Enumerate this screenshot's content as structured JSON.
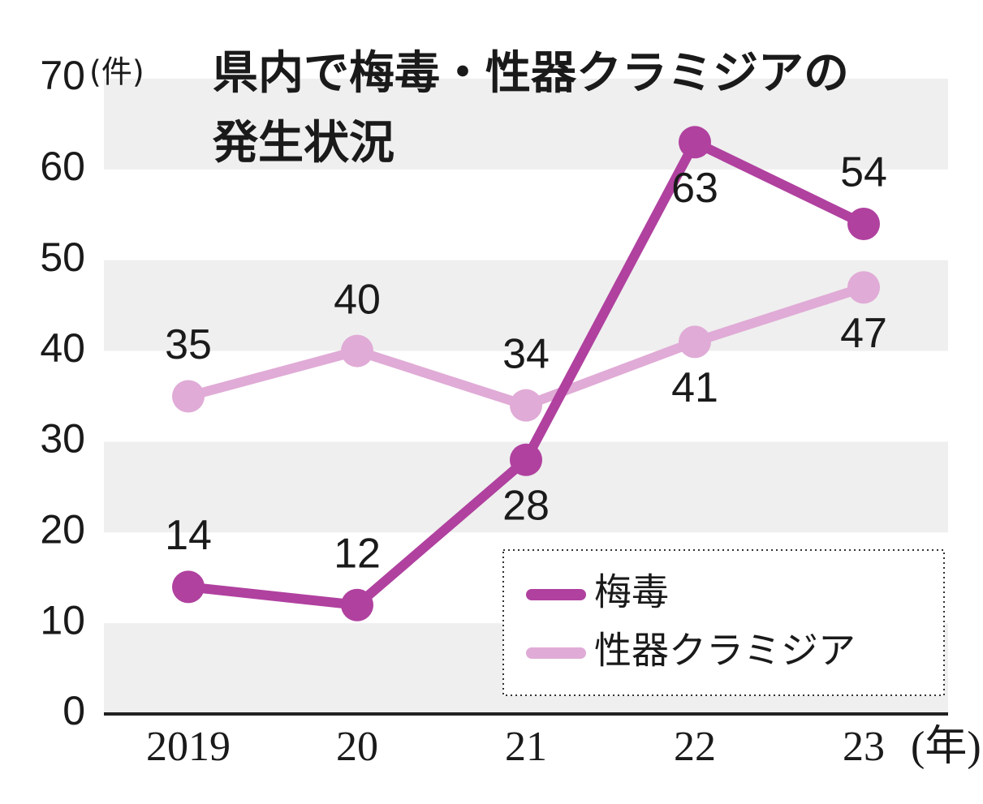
{
  "chart_data": {
    "type": "line",
    "title": [
      "県内で梅毒・性器クラミジアの",
      "発生状況"
    ],
    "y_unit": "(件)",
    "x_unit": "(年)",
    "categories": [
      "2019",
      "20",
      "21",
      "22",
      "23"
    ],
    "series": [
      {
        "name": "梅毒",
        "color": "#b0419f",
        "values": [
          14,
          12,
          28,
          63,
          54
        ]
      },
      {
        "name": "性器クラミジア",
        "color": "#e0abd6",
        "values": [
          35,
          40,
          34,
          41,
          47
        ]
      }
    ],
    "ylim": [
      0,
      70
    ],
    "yticks": [
      0,
      10,
      20,
      30,
      40,
      50,
      60,
      70
    ],
    "grid": true,
    "legend": "lower right"
  }
}
